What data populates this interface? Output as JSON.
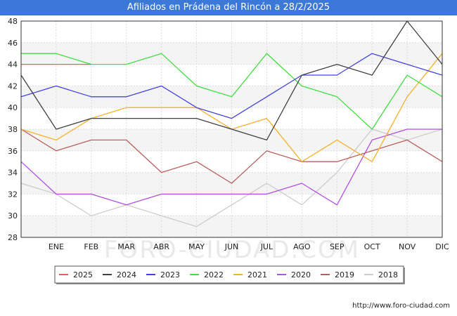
{
  "title": "Afiliados en Prádena del Rincón a 28/2/2025",
  "footer": "http://www.foro-ciudad.com",
  "watermark": "FORO-CIUDAD.COM",
  "chart_data": {
    "type": "line",
    "categories": [
      "",
      "ENE",
      "FEB",
      "MAR",
      "ABR",
      "MAY",
      "JUN",
      "JUL",
      "AGO",
      "SEP",
      "OCT",
      "NOV",
      "DIC"
    ],
    "ylim": [
      28,
      48
    ],
    "yticks": [
      28,
      30,
      32,
      34,
      36,
      38,
      40,
      42,
      44,
      46,
      48
    ],
    "grid": true,
    "legend_position": "bottom",
    "series": [
      {
        "name": "2025",
        "color": "#e06060",
        "values": [
          44,
          44,
          44,
          null,
          null,
          null,
          null,
          null,
          null,
          null,
          null,
          null,
          null
        ]
      },
      {
        "name": "2024",
        "color": "#404040",
        "values": [
          43,
          38,
          39,
          39,
          39,
          39,
          38,
          37,
          43,
          44,
          43,
          48,
          44
        ]
      },
      {
        "name": "2023",
        "color": "#4444dd",
        "values": [
          41,
          42,
          41,
          41,
          42,
          40,
          39,
          41,
          43,
          43,
          45,
          44,
          43
        ]
      },
      {
        "name": "2022",
        "color": "#44dd44",
        "values": [
          45,
          45,
          44,
          44,
          45,
          42,
          41,
          45,
          42,
          41,
          38,
          43,
          41
        ]
      },
      {
        "name": "2021",
        "color": "#f5b030",
        "values": [
          38,
          37,
          39,
          40,
          40,
          40,
          38,
          39,
          35,
          37,
          35,
          41,
          45
        ]
      },
      {
        "name": "2020",
        "color": "#b050e0",
        "values": [
          35,
          32,
          32,
          31,
          32,
          32,
          32,
          32,
          33,
          31,
          37,
          38,
          38
        ]
      },
      {
        "name": "2019",
        "color": "#b86060",
        "values": [
          38,
          36,
          37,
          37,
          34,
          35,
          33,
          36,
          35,
          35,
          36,
          37,
          35
        ]
      },
      {
        "name": "2018",
        "color": "#cccccc",
        "values": [
          33,
          32,
          30,
          31,
          30,
          29,
          31,
          33,
          31,
          34,
          38,
          37,
          38
        ]
      }
    ]
  }
}
